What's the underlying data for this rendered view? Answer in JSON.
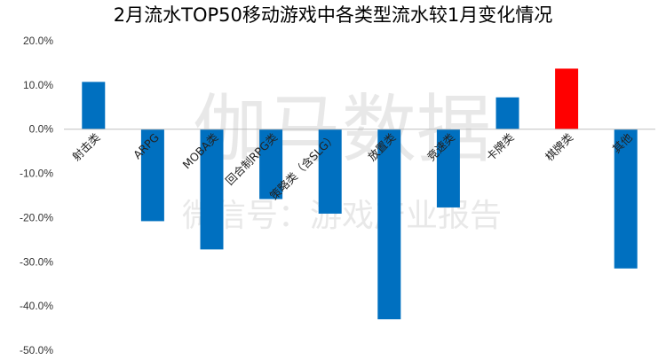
{
  "chart_data": {
    "type": "bar",
    "title": "2月流水TOP50移动游戏中各类型流水较1月变化情况",
    "xlabel": "",
    "ylabel": "",
    "ylim": [
      -50,
      20
    ],
    "y_ticks": [
      "20.0%",
      "10.0%",
      "0.0%",
      "-10.0%",
      "-20.0%",
      "-30.0%",
      "-40.0%",
      "-50.0%"
    ],
    "y_tick_values": [
      20,
      10,
      0,
      -10,
      -20,
      -30,
      -40,
      -50
    ],
    "unit": "%",
    "grid": false,
    "legend": "none",
    "categories": [
      "射击类",
      "ARPG",
      "MOBA类",
      "回合制RPG类",
      "策略类（含SLG）",
      "放置类",
      "竞速类",
      "卡牌类",
      "棋牌类",
      "其他"
    ],
    "values": [
      10.7,
      -20.8,
      -27.2,
      -15.8,
      -19.1,
      -43.0,
      -17.7,
      7.2,
      13.7,
      -31.5
    ],
    "colors": [
      "#0070c0",
      "#0070c0",
      "#0070c0",
      "#0070c0",
      "#0070c0",
      "#0070c0",
      "#0070c0",
      "#0070c0",
      "#ff0000",
      "#0070c0"
    ]
  },
  "watermark": {
    "main": "伽马数据",
    "sub": "微信号：游戏产业报告"
  }
}
